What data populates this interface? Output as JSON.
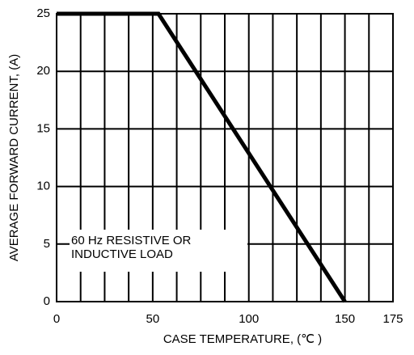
{
  "chart_data": {
    "type": "line",
    "xlabel": "CASE TEMPERATURE, (℃ )",
    "ylabel": "AVERAGE FORWARD  CURRENT, (A)",
    "annotation": [
      "60 Hz RESISTIVE OR",
      "INDUCTIVE LOAD"
    ],
    "x": [
      0,
      53,
      150
    ],
    "series": [
      {
        "color": "#000000",
        "values": [
          25,
          25,
          0
        ]
      }
    ],
    "xlim": [
      0,
      175
    ],
    "xticks": [
      0,
      50,
      100,
      150,
      175
    ],
    "x_grid_lines": [
      0,
      12.5,
      25,
      37.5,
      50,
      62.5,
      75,
      87.5,
      100,
      112.5,
      125,
      137.5,
      150,
      162.5,
      175
    ],
    "ylim": [
      0,
      25
    ],
    "yticks": [
      0,
      5,
      10,
      15,
      20,
      25
    ],
    "grid": true
  }
}
